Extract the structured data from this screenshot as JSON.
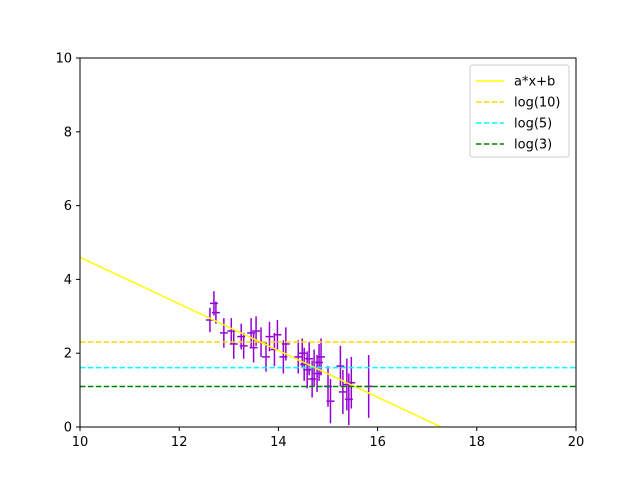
{
  "chart_data": {
    "type": "scatter",
    "title": "",
    "xlabel": "",
    "ylabel": "",
    "xlim": [
      10,
      20
    ],
    "ylim": [
      0,
      10
    ],
    "xticks": [
      10,
      12,
      14,
      16,
      18,
      20
    ],
    "yticks": [
      0,
      2,
      4,
      6,
      8,
      10
    ],
    "grid": false,
    "legend_position": "top-right",
    "errorbar_series": {
      "color": "#9400d3",
      "points": [
        {
          "x": 12.62,
          "y": 2.9,
          "xerr": 0.08,
          "yerr": 0.33
        },
        {
          "x": 12.7,
          "y": 3.35,
          "xerr": 0.08,
          "yerr": 0.33
        },
        {
          "x": 12.74,
          "y": 3.1,
          "xerr": 0.08,
          "yerr": 0.3
        },
        {
          "x": 12.9,
          "y": 2.55,
          "xerr": 0.08,
          "yerr": 0.4
        },
        {
          "x": 13.05,
          "y": 2.6,
          "xerr": 0.08,
          "yerr": 0.35
        },
        {
          "x": 13.1,
          "y": 2.25,
          "xerr": 0.08,
          "yerr": 0.4
        },
        {
          "x": 13.25,
          "y": 2.45,
          "xerr": 0.08,
          "yerr": 0.35
        },
        {
          "x": 13.3,
          "y": 2.2,
          "xerr": 0.08,
          "yerr": 0.35
        },
        {
          "x": 13.45,
          "y": 2.55,
          "xerr": 0.08,
          "yerr": 0.4
        },
        {
          "x": 13.5,
          "y": 2.15,
          "xerr": 0.08,
          "yerr": 0.4
        },
        {
          "x": 13.55,
          "y": 2.6,
          "xerr": 0.08,
          "yerr": 0.4
        },
        {
          "x": 13.65,
          "y": 2.3,
          "xerr": 0.08,
          "yerr": 0.4
        },
        {
          "x": 13.75,
          "y": 1.9,
          "xerr": 0.08,
          "yerr": 0.4
        },
        {
          "x": 13.82,
          "y": 2.45,
          "xerr": 0.08,
          "yerr": 0.4
        },
        {
          "x": 13.92,
          "y": 2.1,
          "xerr": 0.08,
          "yerr": 0.45
        },
        {
          "x": 13.98,
          "y": 2.5,
          "xerr": 0.08,
          "yerr": 0.4
        },
        {
          "x": 14.1,
          "y": 1.9,
          "xerr": 0.08,
          "yerr": 0.45
        },
        {
          "x": 14.15,
          "y": 2.25,
          "xerr": 0.08,
          "yerr": 0.45
        },
        {
          "x": 14.4,
          "y": 1.9,
          "xerr": 0.08,
          "yerr": 0.45
        },
        {
          "x": 14.48,
          "y": 2.0,
          "xerr": 0.08,
          "yerr": 0.4
        },
        {
          "x": 14.52,
          "y": 1.7,
          "xerr": 0.08,
          "yerr": 0.45
        },
        {
          "x": 14.58,
          "y": 1.55,
          "xerr": 0.08,
          "yerr": 0.5
        },
        {
          "x": 14.62,
          "y": 1.85,
          "xerr": 0.08,
          "yerr": 0.45
        },
        {
          "x": 14.68,
          "y": 1.3,
          "xerr": 0.08,
          "yerr": 0.5
        },
        {
          "x": 14.72,
          "y": 1.6,
          "xerr": 0.08,
          "yerr": 0.5
        },
        {
          "x": 14.78,
          "y": 1.45,
          "xerr": 0.08,
          "yerr": 0.5
        },
        {
          "x": 14.82,
          "y": 1.75,
          "xerr": 0.08,
          "yerr": 0.5
        },
        {
          "x": 14.86,
          "y": 1.9,
          "xerr": 0.08,
          "yerr": 0.5
        },
        {
          "x": 15.0,
          "y": 1.1,
          "xerr": 0.08,
          "yerr": 0.55
        },
        {
          "x": 15.05,
          "y": 0.7,
          "xerr": 0.08,
          "yerr": 0.6
        },
        {
          "x": 15.25,
          "y": 1.65,
          "xerr": 0.08,
          "yerr": 0.55
        },
        {
          "x": 15.3,
          "y": 0.95,
          "xerr": 0.08,
          "yerr": 0.6
        },
        {
          "x": 15.38,
          "y": 1.15,
          "xerr": 0.08,
          "yerr": 0.7
        },
        {
          "x": 15.42,
          "y": 0.75,
          "xerr": 0.08,
          "yerr": 0.7
        },
        {
          "x": 15.47,
          "y": 1.2,
          "xerr": 0.08,
          "yerr": 0.7
        },
        {
          "x": 15.82,
          "y": 1.1,
          "xerr": 0.08,
          "yerr": 0.85
        }
      ]
    },
    "lines": [
      {
        "name": "a*x+b",
        "kind": "linear",
        "a": -0.632,
        "b": 10.92,
        "color": "#ffff00",
        "dash": "solid"
      },
      {
        "name": "log(10)",
        "kind": "hline",
        "y": 2.302585,
        "color": "#ffd700",
        "dash": "dashed"
      },
      {
        "name": "log(5)",
        "kind": "hline",
        "y": 1.609438,
        "color": "#00ffff",
        "dash": "dashed"
      },
      {
        "name": "log(3)",
        "kind": "hline",
        "y": 1.098612,
        "color": "#008000",
        "dash": "dashed"
      }
    ]
  }
}
